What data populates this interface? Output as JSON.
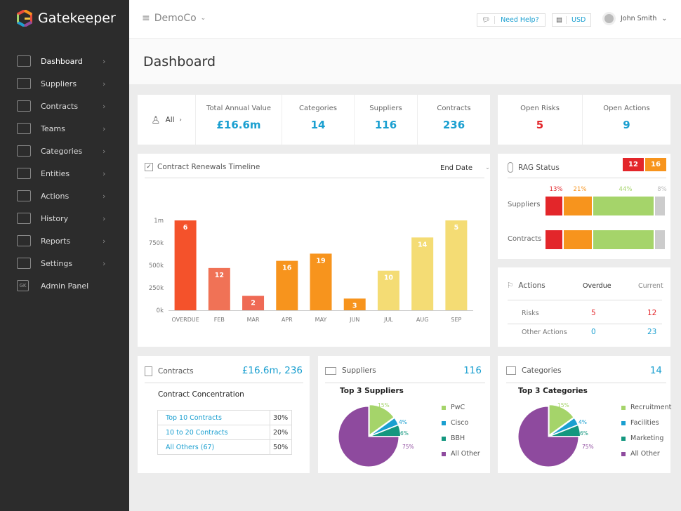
{
  "app": {
    "name": "Gatekeeper"
  },
  "sidebar": {
    "items": [
      {
        "label": "Dashboard",
        "icon": "monitor-icon"
      },
      {
        "label": "Suppliers",
        "icon": "briefcase-icon"
      },
      {
        "label": "Contracts",
        "icon": "document-icon"
      },
      {
        "label": "Teams",
        "icon": "users-icon"
      },
      {
        "label": "Categories",
        "icon": "folder-icon"
      },
      {
        "label": "Entities",
        "icon": "building-icon"
      },
      {
        "label": "Actions",
        "icon": "flag-icon"
      },
      {
        "label": "History",
        "icon": "clock-icon"
      },
      {
        "label": "Reports",
        "icon": "bar-chart-icon"
      },
      {
        "label": "Settings",
        "icon": "gear-icon"
      },
      {
        "label": "Admin Panel",
        "icon": "gk-icon",
        "badge": "GK"
      }
    ]
  },
  "topbar": {
    "company": "DemoCo",
    "help": "Need Help?",
    "currency": "USD",
    "user": "John Smith"
  },
  "page": {
    "title": "Dashboard"
  },
  "stats": {
    "filter": "All",
    "items": [
      {
        "label": "Total Annual Value",
        "value": "£16.6m"
      },
      {
        "label": "Categories",
        "value": "14"
      },
      {
        "label": "Suppliers",
        "value": "116"
      },
      {
        "label": "Contracts",
        "value": "236"
      }
    ],
    "open_risks": {
      "label": "Open Risks",
      "value": "5"
    },
    "open_actions": {
      "label": "Open Actions",
      "value": "9"
    }
  },
  "timeline": {
    "title": "Contract Renewals Timeline",
    "sort": "End Date"
  },
  "chart_data": {
    "type": "bar",
    "title": "Contract Renewals Timeline",
    "categories": [
      "OVERDUE",
      "FEB",
      "MAR",
      "APR",
      "MAY",
      "JUN",
      "JUL",
      "AUG",
      "SEP"
    ],
    "values": [
      1000000,
      470000,
      160000,
      550000,
      630000,
      130000,
      440000,
      810000,
      1000000
    ],
    "counts": [
      "6",
      "12",
      "2",
      "16",
      "19",
      "3",
      "10",
      "14",
      "5"
    ],
    "colors": [
      "#f4522b",
      "#f07256",
      "#ef6a55",
      "#f7941d",
      "#f7941d",
      "#f7941d",
      "#f4dc74",
      "#f4dc74",
      "#f4dc74"
    ],
    "yticks": [
      {
        "v": 0,
        "l": "0k"
      },
      {
        "v": 250000,
        "l": "250k"
      },
      {
        "v": 500000,
        "l": "500k"
      },
      {
        "v": 750000,
        "l": "750k"
      },
      {
        "v": 1000000,
        "l": "1m"
      }
    ],
    "ylim": [
      0,
      1000000
    ]
  },
  "rag": {
    "title": "RAG Status",
    "badge_red": "12",
    "badge_amber": "16",
    "pct": [
      "13%",
      "21%",
      "44%",
      "8%"
    ],
    "rows": [
      "Suppliers",
      "Contracts"
    ],
    "segments": [
      13,
      21,
      44,
      8
    ],
    "colors": [
      "#e3262a",
      "#f7941d",
      "#a5d46a",
      "#cccccc"
    ]
  },
  "actions": {
    "title": "Actions",
    "col_overdue": "Overdue",
    "col_current": "Current",
    "rows": [
      {
        "label": "Risks",
        "overdue": "5",
        "current": "12"
      },
      {
        "label": "Other Actions",
        "overdue": "0",
        "current": "23"
      }
    ]
  },
  "contracts": {
    "title": "Contracts",
    "summary": "£16.6m, 236",
    "subtitle": "Contract Concentration",
    "rows": [
      {
        "label": "Top 10 Contracts",
        "pct": "30%"
      },
      {
        "label": "10 to 20 Contracts",
        "pct": "20%"
      },
      {
        "label": "All Others (67)",
        "pct": "50%"
      }
    ]
  },
  "suppliers": {
    "title": "Suppliers",
    "count": "116",
    "subtitle": "Top 3 Suppliers",
    "slices": [
      {
        "label": "PwC",
        "pct": "15%",
        "value": 15,
        "color": "#a5d46a"
      },
      {
        "label": "Cisco",
        "pct": "4%",
        "value": 4,
        "color": "#1a9fd0"
      },
      {
        "label": "BBH",
        "pct": "6%",
        "value": 6,
        "color": "#14977f"
      },
      {
        "label": "All Other",
        "pct": "75%",
        "value": 75,
        "color": "#8e4a9e"
      }
    ]
  },
  "categories": {
    "title": "Categories",
    "count": "14",
    "subtitle": "Top 3 Categories",
    "slices": [
      {
        "label": "Recruitment",
        "pct": "15%",
        "value": 15,
        "color": "#a5d46a"
      },
      {
        "label": "Facilities",
        "pct": "4%",
        "value": 4,
        "color": "#1a9fd0"
      },
      {
        "label": "Marketing",
        "pct": "6%",
        "value": 6,
        "color": "#14977f"
      },
      {
        "label": "All Other",
        "pct": "75%",
        "value": 75,
        "color": "#8e4a9e"
      }
    ]
  }
}
